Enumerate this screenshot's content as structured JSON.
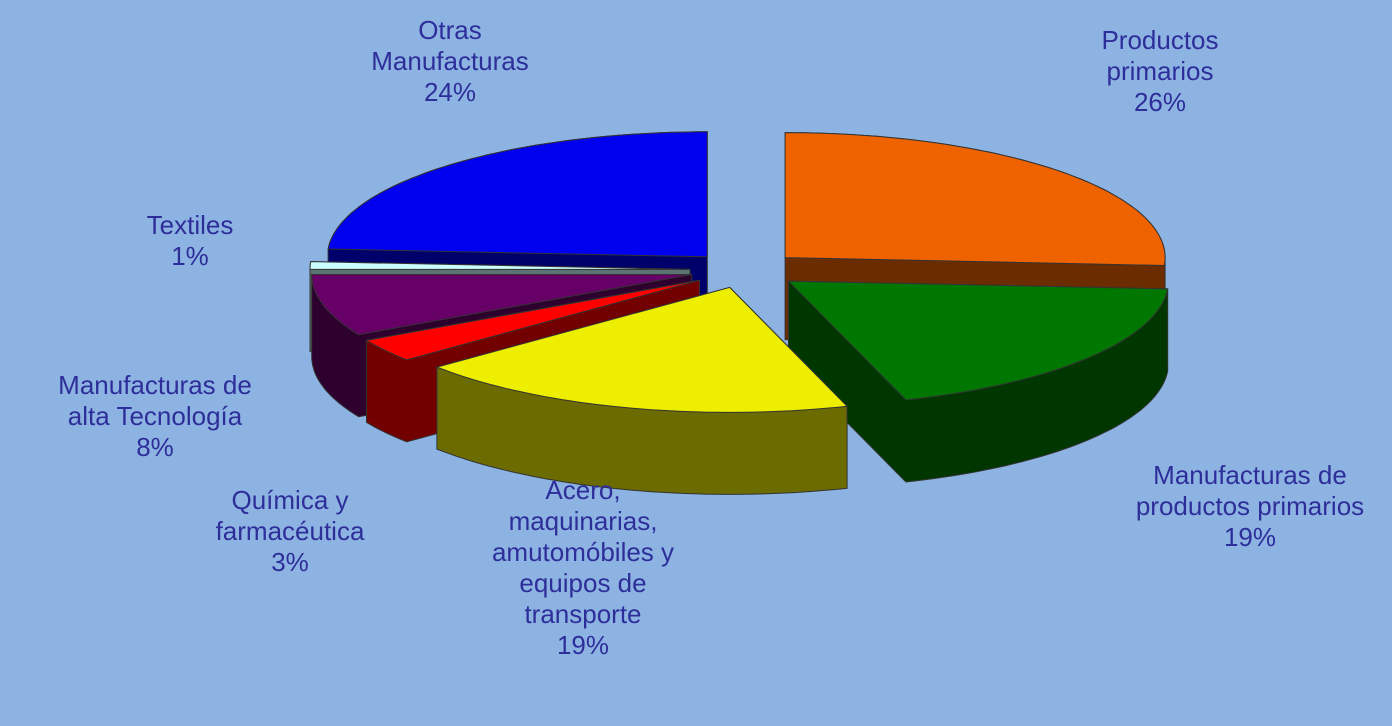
{
  "chart_data": {
    "type": "pie",
    "categories": [
      "Productos primarios",
      "Manufacturas de productos primarios",
      "Acero, maquinarias, amutomóbiles y equipos de transporte",
      "Química y farmacéutica",
      "Manufacturas de alta Tecnología",
      "Textiles",
      "Otras Manufacturas"
    ],
    "values": [
      26,
      19,
      19,
      3,
      8,
      1,
      24
    ],
    "value_labels": [
      "26%",
      "19%",
      "19%",
      "3%",
      "8%",
      "1%",
      "24%"
    ],
    "colors": [
      "#ee6200",
      "#007700",
      "#eeee00",
      "#ff0000",
      "#660066",
      "#ccffff",
      "#0000ee"
    ]
  }
}
